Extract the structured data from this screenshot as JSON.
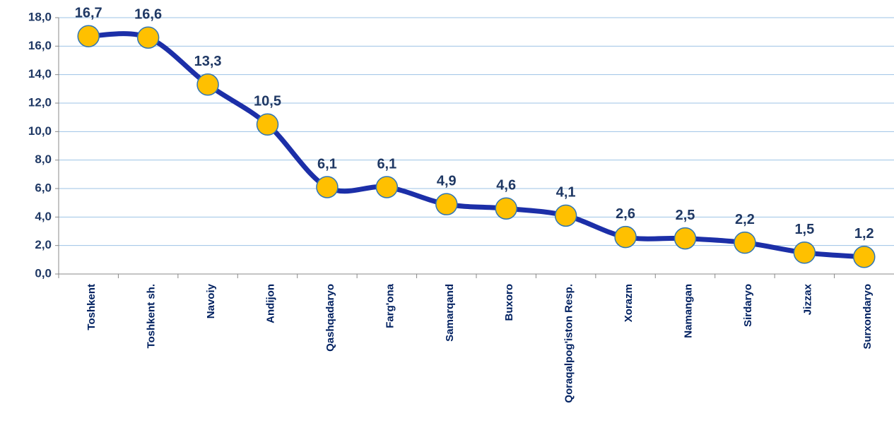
{
  "chart_data": {
    "type": "line",
    "categories": [
      "Toshkent",
      "Toshkent sh.",
      "Navoiy",
      "Andijon",
      "Qashqadaryo",
      "Farg'ona",
      "Samarqand",
      "Buxoro",
      "Qoraqalpog'iston Resp.",
      "Xorazm",
      "Namangan",
      "Sirdaryo",
      "Jizzax",
      "Surxondaryo"
    ],
    "series": [
      {
        "name": null,
        "color": "#1c2fa8",
        "marker_color": "#ffc000",
        "values": [
          16.7,
          16.6,
          13.3,
          10.5,
          6.1,
          6.1,
          4.9,
          4.6,
          4.1,
          2.6,
          2.5,
          2.2,
          1.5,
          1.2
        ],
        "value_labels": [
          "16,7",
          "16,6",
          "13,3",
          "10,5",
          "6,1",
          "6,1",
          "4,9",
          "4,6",
          "4,1",
          "2,6",
          "2,5",
          "2,2",
          "1,5",
          "1,2"
        ]
      }
    ],
    "ylim": [
      0,
      18
    ],
    "yticks": [
      {
        "value": 0,
        "label": "0,0"
      },
      {
        "value": 2,
        "label": "2,0"
      },
      {
        "value": 4,
        "label": "4,0"
      },
      {
        "value": 6,
        "label": "6,0"
      },
      {
        "value": 8,
        "label": "8,0"
      },
      {
        "value": 10,
        "label": "10,0"
      },
      {
        "value": 12,
        "label": "12,0"
      },
      {
        "value": 14,
        "label": "14,0"
      },
      {
        "value": 16,
        "label": "16,0"
      },
      {
        "value": 18,
        "label": "18,0"
      }
    ],
    "grid": true,
    "smooth": true
  }
}
